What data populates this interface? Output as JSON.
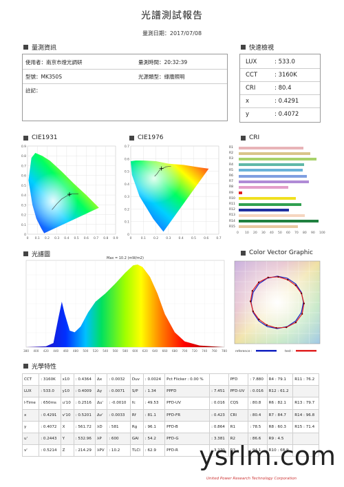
{
  "report": {
    "title": "光譜測試報告",
    "date_label": "量測日期：2017/07/08"
  },
  "sections": {
    "measure_info": "量測資訊",
    "quick_check": "快速檢視",
    "cie1931": "CIE1931",
    "cie1976": "CIE1976",
    "cri": "CRI",
    "spectrum": "光譜圖",
    "color_vector": "Color Vector Graphic",
    "optical": "光學特性"
  },
  "measure_info": {
    "user": "使用者：南京市燈光調研",
    "time": "量測時間：20:32:39",
    "model": "型號：MK350S",
    "source_type": "光源類型：綠牆照明",
    "note": "註記："
  },
  "quick_check": [
    {
      "k": "LUX",
      "v": ": 533.0"
    },
    {
      "k": "CCT",
      "v": ": 3160K"
    },
    {
      "k": "CRI",
      "v": ": 80.4"
    },
    {
      "k": "x",
      "v": ": 0.4291"
    },
    {
      "k": "y",
      "v": ": 0.4072"
    }
  ],
  "cie1931": {
    "y_ticks": [
      "0.9",
      "0.8",
      "0.7",
      "0.6",
      "0.5",
      "0.4",
      "0.3",
      "0.2",
      "0.1",
      "0"
    ],
    "x_ticks": [
      "0",
      "0.1",
      "0.2",
      "0.3",
      "0.4",
      "0.5",
      "0.6",
      "0.7",
      "0.8",
      "0.9"
    ],
    "point": {
      "x": 0.4291,
      "y": 0.4072
    }
  },
  "cie1976": {
    "y_ticks": [
      "0.7",
      "0.6",
      "0.5",
      "0.4",
      "0.3",
      "0.2",
      "0.1",
      "0"
    ],
    "x_ticks": [
      "0",
      "0.1",
      "0.2",
      "0.3",
      "0.4",
      "0.5",
      "0.6",
      "0.7"
    ],
    "point": {
      "x": 0.2443,
      "y": 0.5214
    }
  },
  "chart_data": {
    "type": "bar",
    "categories": [
      "R1",
      "R2",
      "R3",
      "R4",
      "R5",
      "R6",
      "R7",
      "R8",
      "R9",
      "R10",
      "R11",
      "R12",
      "R13",
      "R14",
      "R15"
    ],
    "values": [
      78.5,
      86.6,
      94.1,
      79.1,
      77.8,
      82.1,
      84.7,
      60.3,
      4.5,
      68.9,
      76.2,
      61.2,
      79.7,
      96.8,
      71.4
    ],
    "colors": [
      "#e8b4b8",
      "#d9c58a",
      "#a8d26b",
      "#5fb8a8",
      "#6ab2d9",
      "#7f9fe0",
      "#b08bd6",
      "#e39ec9",
      "#e02020",
      "#f0e020",
      "#30a050",
      "#2030a0",
      "#f5d6c0",
      "#208040",
      "#e8c8a0"
    ],
    "x_ticks": [
      "0",
      "10",
      "20",
      "30",
      "40",
      "50",
      "60",
      "70",
      "80",
      "90",
      "100"
    ],
    "xlim": [
      0,
      100
    ]
  },
  "spectrum": {
    "max_label": "Max = 10.2 (mW/m2)",
    "x_ticks": [
      "380",
      "400",
      "420",
      "440",
      "460",
      "480",
      "500",
      "520",
      "540",
      "560",
      "580",
      "600",
      "620",
      "640",
      "660",
      "680",
      "700",
      "720",
      "740",
      "760",
      "780"
    ]
  },
  "color_vector": {
    "legend_reference": "reference :",
    "legend_test": "test :"
  },
  "optical": [
    [
      "CCT",
      ": 3160K",
      "x10",
      ": 0.4364",
      "Δx",
      ": 0.0032",
      "Duv",
      ": 0.0024",
      "Pct Flicker : 0.00 %",
      "",
      "PFD",
      ": 7.880",
      "R4 : 79.1",
      "R11 : 76.2"
    ],
    [
      "LUX",
      ": 533.0",
      "y10",
      ": 0.4009",
      "Δy",
      ": 0.0071",
      "S/P",
      ": 1.34",
      "PPFD",
      ": 7.451",
      "PFD-UV",
      ": 0.016",
      "R12 : 61.2",
      ""
    ],
    [
      "I-Time",
      ": 650ms",
      "u'10",
      ": 0.2516",
      "Δu'",
      ": -0.0010",
      "fc",
      ": 49.53",
      "PFD-UV",
      ": 0.016",
      "CQS",
      ": 80.8",
      "R6 : 82.1",
      "R13 : 79.7"
    ],
    [
      "x",
      ": 0.4291",
      "v'10",
      ": 0.5201",
      "Δv'",
      ": 0.0033",
      "Rf",
      ": 81.1",
      "PFD-FR",
      ": 0.423",
      "CRI",
      ": 80.4",
      "R7 : 84.7",
      "R14 : 96.8"
    ],
    [
      "y",
      ": 0.4072",
      "X",
      ": 561.72",
      "λD",
      ": 581",
      "Rg",
      ": 96.1",
      "PFD-B",
      ": 0.864",
      "R1",
      ": 78.5",
      "R8 : 60.3",
      "R15 : 71.4"
    ],
    [
      "u'",
      ": 0.2443",
      "Y",
      ": 532.96",
      "λP",
      ": 600",
      "GAI",
      ": 54.2",
      "PFD-G",
      ": 3.381",
      "R2",
      ": 86.6",
      "R9 : 4.5",
      ""
    ],
    [
      "v'",
      ": 0.5214",
      "Z",
      ": 214.29",
      "λPV",
      ": 10.2",
      "TLCI",
      ": 62.9",
      "PFD-R",
      ": 3.270",
      "R3",
      ": 94.1",
      "R10 : 68.9",
      ""
    ]
  ],
  "watermark": {
    "site": "ysrlm.com",
    "company": "United Power Research Technology Corporation"
  }
}
